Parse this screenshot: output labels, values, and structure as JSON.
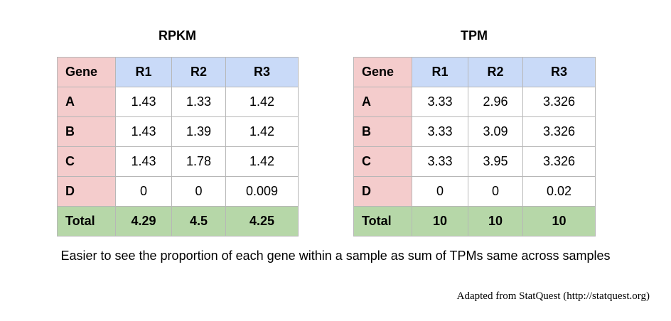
{
  "rpkm": {
    "title": "RPKM",
    "headers": [
      "Gene",
      "R1",
      "R2",
      "R3"
    ],
    "rows": [
      [
        "A",
        "1.43",
        "1.33",
        "1.42"
      ],
      [
        "B",
        "1.43",
        "1.39",
        "1.42"
      ],
      [
        "C",
        "1.43",
        "1.78",
        "1.42"
      ],
      [
        "D",
        "0",
        "0",
        "0.009"
      ]
    ],
    "total": [
      "Total",
      "4.29",
      "4.5",
      "4.25"
    ]
  },
  "tpm": {
    "title": "TPM",
    "headers": [
      "Gene",
      "R1",
      "R2",
      "R3"
    ],
    "rows": [
      [
        "A",
        "3.33",
        "2.96",
        "3.326"
      ],
      [
        "B",
        "3.33",
        "3.09",
        "3.326"
      ],
      [
        "C",
        "3.33",
        "3.95",
        "3.326"
      ],
      [
        "D",
        "0",
        "0",
        "0.02"
      ]
    ],
    "total": [
      "Total",
      "10",
      "10",
      "10"
    ]
  },
  "caption": "Easier to see the proportion of each gene within a sample as sum of TPMs same across samples",
  "credit": "Adapted from StatQuest (http://statquest.org)"
}
